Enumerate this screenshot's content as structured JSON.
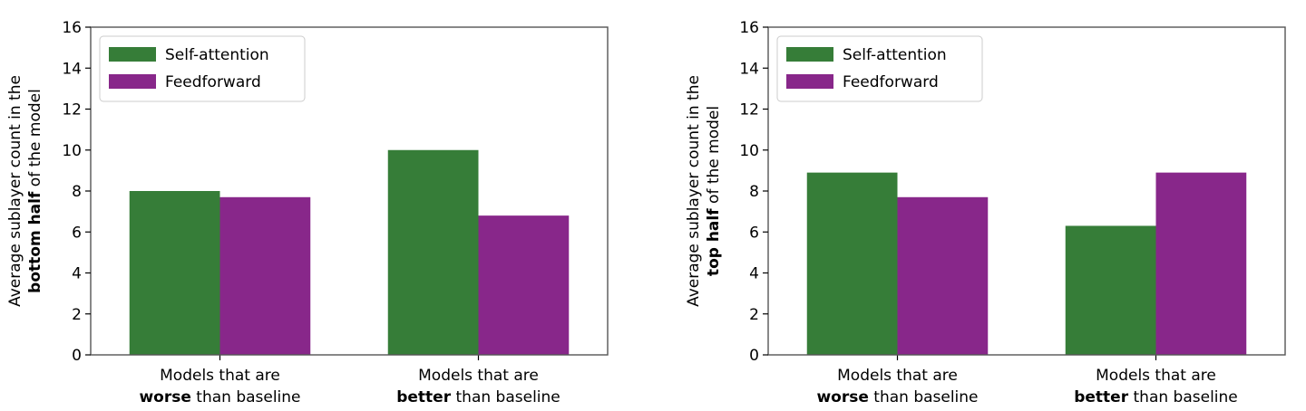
{
  "chart_data": [
    {
      "type": "bar",
      "categories": [
        {
          "line1": "Models that are",
          "line2_bold": "worse",
          "line2_rest": " than baseline"
        },
        {
          "line1": "Models that are",
          "line2_bold": "better",
          "line2_rest": " than baseline"
        }
      ],
      "series": [
        {
          "name": "Self-attention",
          "color": "#367d38",
          "values": [
            8.0,
            10.0
          ]
        },
        {
          "name": "Feedforward",
          "color": "#88278a",
          "values": [
            7.7,
            6.8
          ]
        }
      ],
      "ylabel": {
        "line1": "Average sublayer count in the",
        "line2_bold": "bottom half",
        "line2_rest": " of the model"
      },
      "ylim": [
        0,
        16
      ],
      "yticks": [
        0,
        2,
        4,
        6,
        8,
        10,
        12,
        14,
        16
      ],
      "grid": false,
      "legend": "upper-left"
    },
    {
      "type": "bar",
      "categories": [
        {
          "line1": "Models that are",
          "line2_bold": "worse",
          "line2_rest": " than baseline"
        },
        {
          "line1": "Models that are",
          "line2_bold": "better",
          "line2_rest": " than baseline"
        }
      ],
      "series": [
        {
          "name": "Self-attention",
          "color": "#367d38",
          "values": [
            8.9,
            6.3
          ]
        },
        {
          "name": "Feedforward",
          "color": "#88278a",
          "values": [
            7.7,
            8.9
          ]
        }
      ],
      "ylabel": {
        "line1": "Average sublayer count in the",
        "line2_bold": "top half",
        "line2_rest": " of the model"
      },
      "ylim": [
        0,
        16
      ],
      "yticks": [
        0,
        2,
        4,
        6,
        8,
        10,
        12,
        14,
        16
      ],
      "grid": false,
      "legend": "upper-left"
    }
  ]
}
